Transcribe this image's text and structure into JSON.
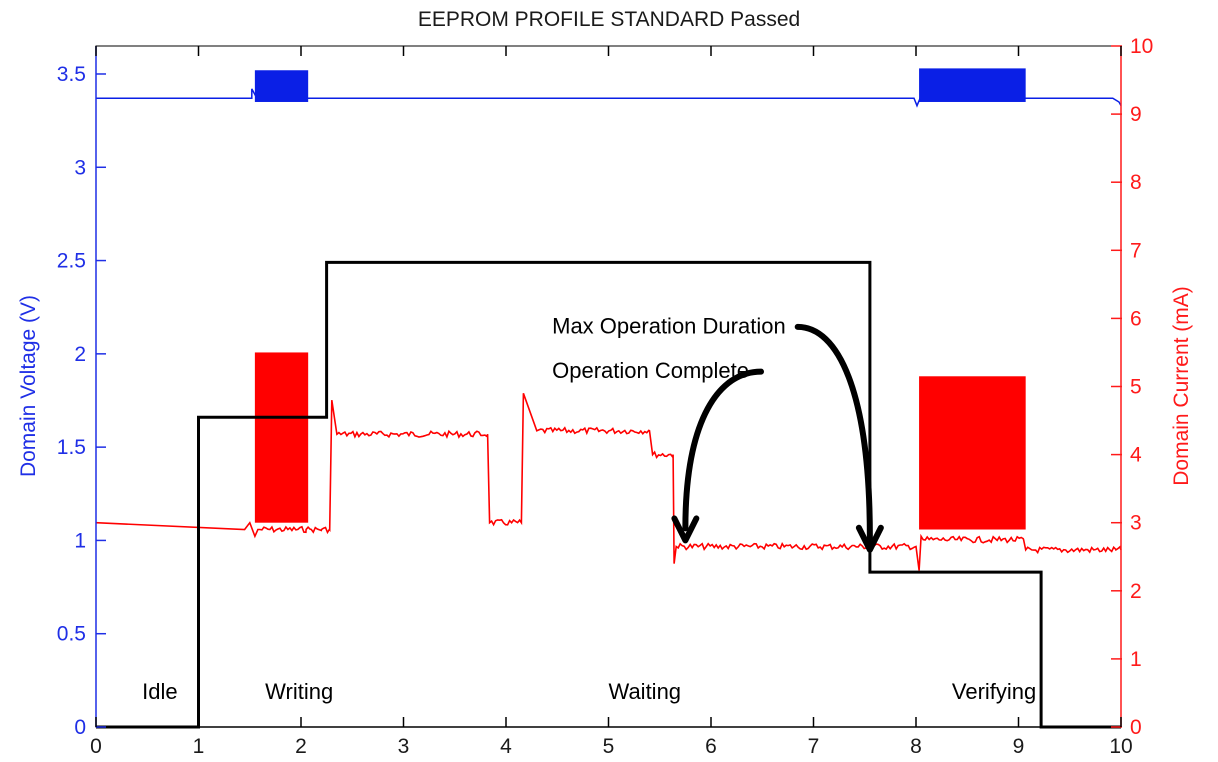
{
  "chart_data": {
    "type": "line",
    "title": "EEPROM PROFILE STANDARD Passed",
    "xlabel": "",
    "ylabel_left": "Domain Voltage (V)",
    "ylabel_right": "Domain Current (mA)",
    "xlim": [
      0,
      10
    ],
    "ylim_left": [
      0,
      3.65
    ],
    "ylim_right": [
      0,
      10
    ],
    "x_ticks": [
      "0",
      "1",
      "2",
      "3",
      "4",
      "5",
      "6",
      "7",
      "8",
      "9",
      "10"
    ],
    "y_left_ticks": [
      "0",
      "0.5",
      "1",
      "1.5",
      "2",
      "2.5",
      "3",
      "3.5"
    ],
    "y_right_ticks": [
      "0",
      "1",
      "2",
      "3",
      "4",
      "5",
      "6",
      "7",
      "8",
      "9",
      "10"
    ],
    "grid": false,
    "colors": {
      "voltage": "#0a1fe6",
      "current": "#ff0000",
      "state": "#000000"
    },
    "series": [
      {
        "axis": "left",
        "points": [
          [
            0,
            3.37
          ],
          [
            1.52,
            3.37
          ],
          [
            1.52,
            3.42
          ],
          [
            1.57,
            3.37
          ],
          [
            2.08,
            3.37
          ],
          [
            2.12,
            3.37
          ],
          [
            7.98,
            3.37
          ],
          [
            8.01,
            3.33
          ],
          [
            8.04,
            3.37
          ],
          [
            9.05,
            3.37
          ],
          [
            9.92,
            3.37
          ],
          [
            9.98,
            3.35
          ],
          [
            10,
            3.33
          ]
        ],
        "bands": [
          [
            1.55,
            2.07,
            3.35,
            3.52
          ],
          [
            8.03,
            9.07,
            3.35,
            3.53
          ]
        ]
      },
      {
        "axis": "right",
        "points": [
          [
            0,
            3.0
          ],
          [
            1.45,
            2.9
          ],
          [
            1.5,
            3.0
          ],
          [
            1.55,
            2.8
          ],
          [
            1.58,
            2.9
          ],
          [
            2.05,
            2.9
          ],
          [
            2.1,
            2.9
          ],
          [
            2.2,
            2.9
          ],
          [
            2.28,
            2.9
          ],
          [
            2.3,
            4.8
          ],
          [
            2.35,
            4.3
          ],
          [
            3.82,
            4.3
          ],
          [
            3.84,
            3.0
          ],
          [
            4.15,
            3.0
          ],
          [
            4.17,
            4.9
          ],
          [
            4.3,
            4.35
          ],
          [
            5.4,
            4.35
          ],
          [
            5.43,
            4.0
          ],
          [
            5.63,
            4.0
          ],
          [
            5.64,
            2.4
          ],
          [
            5.66,
            2.65
          ],
          [
            8.0,
            2.65
          ],
          [
            8.03,
            2.3
          ],
          [
            8.05,
            2.8
          ],
          [
            8.07,
            2.75
          ],
          [
            9.05,
            2.75
          ],
          [
            9.07,
            2.6
          ],
          [
            9.95,
            2.6
          ],
          [
            10,
            2.6
          ]
        ],
        "bands": [
          [
            1.55,
            2.07,
            3.0,
            5.5
          ],
          [
            8.03,
            9.07,
            2.9,
            5.15
          ]
        ]
      },
      {
        "axis": "left",
        "points": [
          [
            0,
            0
          ],
          [
            1.0,
            0
          ],
          [
            1.0,
            1.66
          ],
          [
            2.25,
            1.66
          ],
          [
            2.25,
            2.49
          ],
          [
            7.55,
            2.49
          ],
          [
            7.55,
            0.83
          ],
          [
            9.22,
            0.83
          ],
          [
            9.22,
            0
          ],
          [
            10,
            0
          ]
        ]
      }
    ],
    "annotations": [
      {
        "text": "Idle",
        "x": 0.45,
        "y": 0.15
      },
      {
        "text": "Writing",
        "x": 1.65,
        "y": 0.15
      },
      {
        "text": "Waiting",
        "x": 5.0,
        "y": 0.15
      },
      {
        "text": "Verifying",
        "x": 8.35,
        "y": 0.15
      },
      {
        "text": "Max Operation Duration",
        "x": 4.45,
        "y": 2.11,
        "arrow_to": [
          7.55,
          0.95
        ]
      },
      {
        "text": "Operation Complete",
        "x": 4.45,
        "y": 1.87,
        "arrow_to": [
          5.75,
          1.0
        ]
      }
    ]
  }
}
